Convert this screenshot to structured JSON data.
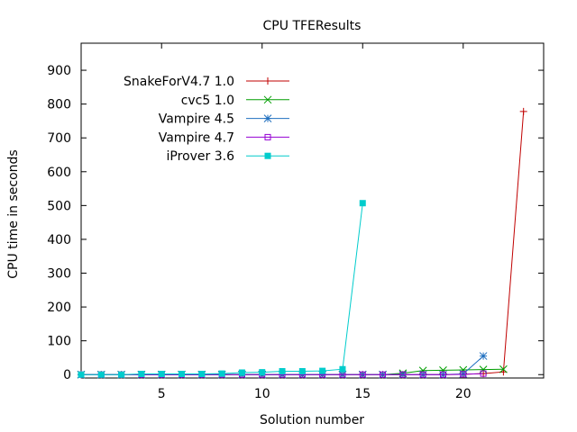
{
  "chart_data": {
    "type": "line",
    "title": "CPU TFEResults",
    "xlabel": "Solution number",
    "ylabel": "CPU time in seconds",
    "xlim": [
      1,
      24
    ],
    "ylim": [
      -10,
      980
    ],
    "xticks": [
      5,
      10,
      15,
      20
    ],
    "yticks": [
      0,
      100,
      200,
      300,
      400,
      500,
      600,
      700,
      800,
      900
    ],
    "grid": false,
    "legend_position": "top-left",
    "series": [
      {
        "name": "SnakeForV4.7 1.0",
        "color": "#c00000",
        "marker": "plus",
        "x": [
          1,
          2,
          3,
          4,
          5,
          6,
          7,
          8,
          9,
          10,
          11,
          12,
          13,
          14,
          15,
          16,
          17,
          18,
          19,
          20,
          21,
          22,
          23
        ],
        "y": [
          0,
          0,
          0,
          0,
          0,
          0,
          0,
          0,
          0,
          0,
          0,
          0,
          0,
          0,
          0,
          0,
          0,
          0,
          0,
          1,
          3,
          8,
          778
        ]
      },
      {
        "name": "cvc5 1.0",
        "color": "#009e00",
        "marker": "cross",
        "x": [
          1,
          2,
          3,
          4,
          5,
          6,
          7,
          8,
          9,
          10,
          11,
          12,
          13,
          14,
          15,
          16,
          17,
          18,
          19,
          20,
          21,
          22
        ],
        "y": [
          0,
          0,
          0,
          0,
          0,
          0,
          0,
          0,
          0,
          0,
          0,
          0,
          0,
          0,
          0,
          0,
          4,
          12,
          13,
          14,
          15,
          16
        ]
      },
      {
        "name": "Vampire 4.5",
        "color": "#1f6fbf",
        "marker": "star",
        "x": [
          1,
          2,
          3,
          4,
          5,
          6,
          7,
          8,
          9,
          10,
          11,
          12,
          13,
          14,
          15,
          16,
          17,
          18,
          19,
          20,
          21
        ],
        "y": [
          0,
          0,
          0,
          0,
          0,
          0,
          0,
          0,
          0,
          0,
          0,
          0,
          0,
          0,
          0,
          0,
          0,
          0,
          0,
          2,
          55
        ]
      },
      {
        "name": "Vampire 4.7",
        "color": "#9400d3",
        "marker": "square-open",
        "x": [
          1,
          2,
          3,
          4,
          5,
          6,
          7,
          8,
          9,
          10,
          11,
          12,
          13,
          14,
          15,
          16,
          17,
          18,
          19,
          20,
          21
        ],
        "y": [
          0,
          0,
          0,
          0,
          0,
          0,
          0,
          0,
          0,
          0,
          0,
          0,
          0,
          0,
          0,
          0,
          0,
          0,
          0,
          1,
          3
        ]
      },
      {
        "name": "iProver 3.6",
        "color": "#00cccc",
        "marker": "square-filled",
        "x": [
          1,
          2,
          3,
          4,
          5,
          6,
          7,
          8,
          9,
          10,
          11,
          12,
          13,
          14,
          15
        ],
        "y": [
          0,
          0,
          0,
          2,
          2,
          2,
          2,
          3,
          6,
          7,
          10,
          10,
          11,
          16,
          507
        ]
      }
    ]
  }
}
